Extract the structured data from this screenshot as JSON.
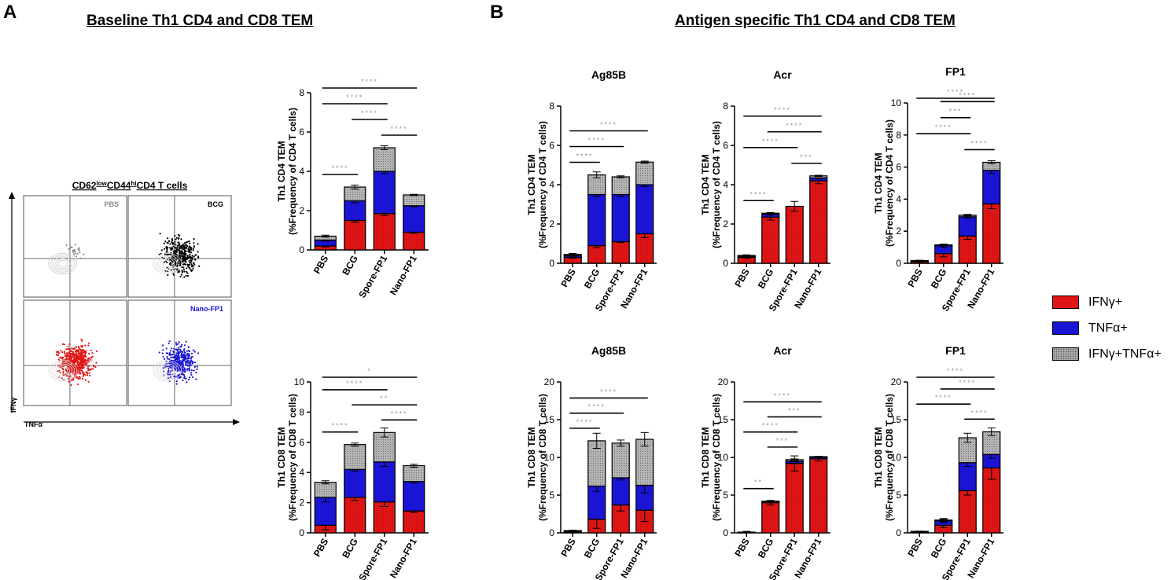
{
  "panel_a": {
    "letter": "A",
    "title": "Baseline Th1 CD4 and CD8 TEM",
    "flow": {
      "title_prefix": "CD62",
      "title_sup1": "low",
      "title_mid": "CD44",
      "title_sup2": "hi",
      "title_suffix": "CD4 T cells",
      "y_axis_label": "IFNγ",
      "x_axis_label": "TNFα",
      "quadrants": [
        {
          "label": "PBS",
          "color": "#8a8a8a"
        },
        {
          "label": "BCG",
          "color": "#000000"
        },
        {
          "label": "",
          "color": "#e01515"
        },
        {
          "label": "Nano-FP1",
          "color": "#1a14d4"
        }
      ]
    }
  },
  "panel_b": {
    "letter": "B",
    "title": "Antigen specific Th1 CD4 and CD8 TEM"
  },
  "legend": {
    "items": [
      {
        "label": "IFNγ+",
        "key": "ifng"
      },
      {
        "label": "TNFα+",
        "key": "tnfa"
      },
      {
        "label": "IFNγ+TNFα+",
        "key": "both"
      }
    ]
  },
  "colors": {
    "ifng": "#e01515",
    "tnfa": "#1a14d4",
    "both": "#b5b5b5",
    "sig": "#9a9a9a"
  },
  "chart_data": [
    {
      "id": "a_cd4",
      "type": "bar",
      "stacked": true,
      "title": "",
      "ylabel": [
        "Th1 CD4 TEM",
        "(%Frequency of CD4 T cells)"
      ],
      "categories": [
        "PBS",
        "BCG",
        "Spore-FP1",
        "Nano-FP1"
      ],
      "ylim": [
        0,
        8
      ],
      "yticks": [
        0,
        2,
        4,
        6,
        8
      ],
      "series": [
        {
          "name": "IFNγ+",
          "values": [
            0.2,
            1.5,
            1.85,
            0.9
          ],
          "err": [
            0.05,
            0.1,
            0.1,
            0.05
          ]
        },
        {
          "name": "TNFα+",
          "values": [
            0.3,
            1.0,
            2.15,
            1.35
          ],
          "err": [
            0.05,
            0.1,
            0.1,
            0.05
          ]
        },
        {
          "name": "IFNγ+TNFα+",
          "values": [
            0.2,
            0.7,
            1.2,
            0.55
          ],
          "err": [
            0.05,
            0.1,
            0.1,
            0.03
          ]
        }
      ],
      "sig": [
        {
          "from": 0,
          "to": 1,
          "stars": "****"
        },
        {
          "from": 2,
          "to": 3,
          "stars": "****"
        },
        {
          "from": 1,
          "to": 2,
          "stars": "****"
        },
        {
          "from": 0,
          "to": 2,
          "stars": "****"
        },
        {
          "from": 0,
          "to": 3,
          "stars": "****"
        }
      ]
    },
    {
      "id": "a_cd8",
      "type": "bar",
      "stacked": true,
      "title": "",
      "ylabel": [
        "Th1 CD8 TEM",
        "(%Frequency of CD8 T cells)"
      ],
      "categories": [
        "PBS",
        "BCG",
        "Spore-FP1",
        "Nano-FP1"
      ],
      "ylim": [
        0,
        10
      ],
      "yticks": [
        0,
        2,
        4,
        6,
        8,
        10
      ],
      "series": [
        {
          "name": "IFNγ+",
          "values": [
            0.5,
            2.35,
            2.05,
            1.45
          ],
          "err": [
            0.3,
            0.2,
            0.3,
            0.1
          ]
        },
        {
          "name": "TNFα+",
          "values": [
            1.85,
            1.85,
            2.65,
            1.95
          ],
          "err": [
            0.3,
            0.1,
            0.3,
            0.1
          ]
        },
        {
          "name": "IFNγ+TNFα+",
          "values": [
            1.0,
            1.65,
            1.95,
            1.05
          ],
          "err": [
            0.1,
            0.1,
            0.3,
            0.1
          ]
        }
      ],
      "sig": [
        {
          "from": 0,
          "to": 1,
          "stars": "****"
        },
        {
          "from": 2,
          "to": 3,
          "stars": "****"
        },
        {
          "from": 1,
          "to": 3,
          "stars": "**"
        },
        {
          "from": 0,
          "to": 2,
          "stars": "****"
        },
        {
          "from": 0,
          "to": 3,
          "stars": "*"
        }
      ]
    },
    {
      "id": "b_cd4_ag85b",
      "type": "bar",
      "stacked": true,
      "title": "Ag85B",
      "ylabel": [
        "Th1 CD4 TEM",
        "(%Frequency of CD4 T cells)"
      ],
      "categories": [
        "PBS",
        "BCG",
        "Spore-FP1",
        "Nano-FP1"
      ],
      "ylim": [
        0,
        8
      ],
      "yticks": [
        0,
        2,
        4,
        6,
        8
      ],
      "series": [
        {
          "name": "IFNγ+",
          "values": [
            0.3,
            0.9,
            1.1,
            1.5
          ],
          "err": [
            0.05,
            0.1,
            0.05,
            0.2
          ]
        },
        {
          "name": "TNFα+",
          "values": [
            0.1,
            2.6,
            2.4,
            2.5
          ],
          "err": [
            0.05,
            0.1,
            0.1,
            0.1
          ]
        },
        {
          "name": "IFNγ+TNFα+",
          "values": [
            0.05,
            1.0,
            0.9,
            1.15
          ],
          "err": [
            0.05,
            0.15,
            0.05,
            0.05
          ]
        }
      ],
      "sig": [
        {
          "from": 0,
          "to": 1,
          "stars": "****"
        },
        {
          "from": 0,
          "to": 2,
          "stars": "****"
        },
        {
          "from": 0,
          "to": 3,
          "stars": "****"
        }
      ]
    },
    {
      "id": "b_cd4_acr",
      "type": "bar",
      "stacked": true,
      "title": "Acr",
      "ylabel": [
        "Th1 CD4 TEM",
        "(%Frequency of CD4 T cells)"
      ],
      "categories": [
        "PBS",
        "BCG",
        "Spore-FP1",
        "Nano-FP1"
      ],
      "ylim": [
        0,
        8
      ],
      "yticks": [
        0,
        2,
        4,
        6,
        8
      ],
      "series": [
        {
          "name": "IFNγ+",
          "values": [
            0.3,
            2.35,
            2.9,
            4.2
          ],
          "err": [
            0.05,
            0.15,
            0.25,
            0.15
          ]
        },
        {
          "name": "TNFα+",
          "values": [
            0.05,
            0.15,
            0.0,
            0.15
          ],
          "err": [
            0.03,
            0.05,
            0.0,
            0.05
          ]
        },
        {
          "name": "IFNγ+TNFα+",
          "values": [
            0.05,
            0.05,
            0.0,
            0.1
          ],
          "err": [
            0.03,
            0.03,
            0.0,
            0.03
          ]
        }
      ],
      "sig": [
        {
          "from": 0,
          "to": 1,
          "stars": "****"
        },
        {
          "from": 2,
          "to": 3,
          "stars": "***"
        },
        {
          "from": 0,
          "to": 2,
          "stars": "****"
        },
        {
          "from": 1,
          "to": 3,
          "stars": "****"
        },
        {
          "from": 0,
          "to": 3,
          "stars": "****"
        }
      ]
    },
    {
      "id": "b_cd4_fp1",
      "type": "bar",
      "stacked": true,
      "title": "FP1",
      "ylabel": [
        "Th1 CD4 TEM",
        "(%Frequency of CD4 T cells)"
      ],
      "categories": [
        "PBS",
        "BCG",
        "Spore-FP1",
        "Nano-FP1"
      ],
      "ylim": [
        0,
        10
      ],
      "yticks": [
        0,
        2,
        4,
        6,
        8,
        10
      ],
      "series": [
        {
          "name": "IFNγ+",
          "values": [
            0.1,
            0.6,
            1.7,
            3.7
          ],
          "err": [
            0.03,
            0.2,
            0.2,
            0.3
          ]
        },
        {
          "name": "TNFα+",
          "values": [
            0.05,
            0.5,
            1.2,
            2.1
          ],
          "err": [
            0.03,
            0.1,
            0.1,
            0.2
          ]
        },
        {
          "name": "IFNγ+TNFα+",
          "values": [
            0.02,
            0.05,
            0.1,
            0.5
          ],
          "err": [
            0.02,
            0.03,
            0.05,
            0.1
          ]
        }
      ],
      "sig": [
        {
          "from": 2,
          "to": 3,
          "stars": "****"
        },
        {
          "from": 0,
          "to": 2,
          "stars": "****"
        },
        {
          "from": 1,
          "to": 2,
          "stars": "***"
        },
        {
          "from": 1,
          "to": 3,
          "stars": "****"
        },
        {
          "from": 0,
          "to": 3,
          "stars": "****"
        }
      ]
    },
    {
      "id": "b_cd8_ag85b",
      "type": "bar",
      "stacked": true,
      "title": "Ag85B",
      "ylabel": [
        "Th1 CD8 TEM",
        "(%Frequency of CD8 T cells)"
      ],
      "categories": [
        "PBS",
        "BCG",
        "Spore-FP1",
        "Nano-FP1"
      ],
      "ylim": [
        0,
        20
      ],
      "yticks": [
        0,
        5,
        10,
        15,
        20
      ],
      "series": [
        {
          "name": "IFNγ+",
          "values": [
            0.1,
            1.8,
            3.7,
            3.0
          ],
          "err": [
            0.05,
            1.2,
            0.8,
            1.5
          ]
        },
        {
          "name": "TNFα+",
          "values": [
            0.1,
            4.4,
            3.6,
            3.3
          ],
          "err": [
            0.05,
            0.7,
            0.3,
            1.0
          ]
        },
        {
          "name": "IFNγ+TNFα+",
          "values": [
            0.1,
            6.0,
            4.6,
            6.1
          ],
          "err": [
            0.05,
            1.0,
            0.4,
            0.9
          ]
        }
      ],
      "sig": [
        {
          "from": 0,
          "to": 1,
          "stars": "****"
        },
        {
          "from": 0,
          "to": 2,
          "stars": "****"
        },
        {
          "from": 0,
          "to": 3,
          "stars": "****"
        }
      ]
    },
    {
      "id": "b_cd8_acr",
      "type": "bar",
      "stacked": true,
      "title": "Acr",
      "ylabel": [
        "Th1 CD8 TEM",
        "(%Frequency of CD8 T cells)"
      ],
      "categories": [
        "PBS",
        "BCG",
        "Spore-FP1",
        "Nano-FP1"
      ],
      "ylim": [
        0,
        20
      ],
      "yticks": [
        0,
        5,
        10,
        15,
        20
      ],
      "series": [
        {
          "name": "IFNγ+",
          "values": [
            0.1,
            4.0,
            9.2,
            9.8
          ],
          "err": [
            0.1,
            0.3,
            1.0,
            0.3
          ]
        },
        {
          "name": "TNFα+",
          "values": [
            0.0,
            0.1,
            0.3,
            0.2
          ],
          "err": [
            0.0,
            0.05,
            0.1,
            0.05
          ]
        },
        {
          "name": "IFNγ+TNFα+",
          "values": [
            0.0,
            0.1,
            0.2,
            0.1
          ],
          "err": [
            0.0,
            0.05,
            0.1,
            0.05
          ]
        }
      ],
      "sig": [
        {
          "from": 0,
          "to": 1,
          "stars": "**"
        },
        {
          "from": 1,
          "to": 2,
          "stars": "***"
        },
        {
          "from": 0,
          "to": 2,
          "stars": "****"
        },
        {
          "from": 1,
          "to": 3,
          "stars": "***"
        },
        {
          "from": 0,
          "to": 3,
          "stars": "****"
        }
      ]
    },
    {
      "id": "b_cd8_fp1",
      "type": "bar",
      "stacked": true,
      "title": "FP1",
      "ylabel": [
        "Th1 CD8 TEM",
        "(%Frequency of CD8 T cells)"
      ],
      "categories": [
        "PBS",
        "BCG",
        "Spore-FP1",
        "Nano-FP1"
      ],
      "ylim": [
        0,
        20
      ],
      "yticks": [
        0,
        5,
        10,
        15,
        20
      ],
      "series": [
        {
          "name": "IFNγ+",
          "values": [
            0.1,
            1.0,
            5.6,
            8.6
          ],
          "err": [
            0.05,
            0.3,
            0.6,
            1.5
          ]
        },
        {
          "name": "TNFα+",
          "values": [
            0.05,
            0.6,
            3.7,
            1.8
          ],
          "err": [
            0.03,
            0.2,
            0.5,
            0.5
          ]
        },
        {
          "name": "IFNγ+TNFα+",
          "values": [
            0.05,
            0.1,
            3.3,
            3.0
          ],
          "err": [
            0.03,
            0.2,
            0.6,
            0.5
          ]
        }
      ],
      "sig": [
        {
          "from": 2,
          "to": 3,
          "stars": "****"
        },
        {
          "from": 0,
          "to": 2,
          "stars": "****"
        },
        {
          "from": 1,
          "to": 3,
          "stars": "****"
        },
        {
          "from": 0,
          "to": 3,
          "stars": "****"
        }
      ]
    }
  ]
}
